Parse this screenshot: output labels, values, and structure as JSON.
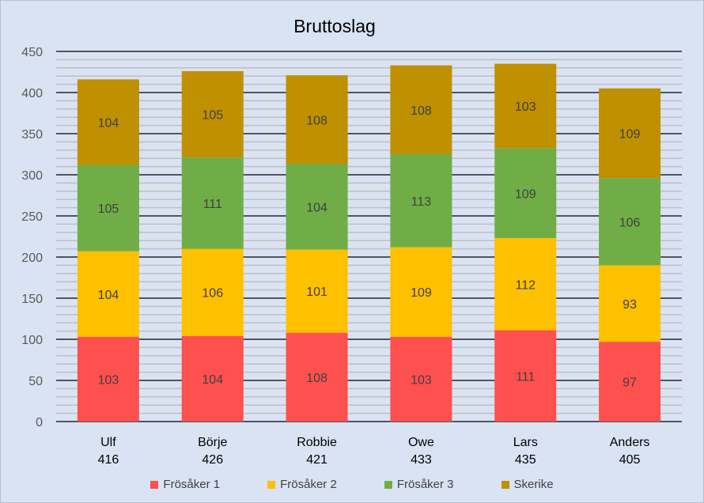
{
  "chart_data": {
    "type": "bar",
    "stacked": true,
    "title": "Bruttoslag",
    "categories": [
      "Ulf",
      "Börje",
      "Robbie",
      "Owe",
      "Lars",
      "Anders"
    ],
    "totals": [
      "416",
      "426",
      "421",
      "433",
      "435",
      "405"
    ],
    "series": [
      {
        "name": "Frösåker 1",
        "color": "#ff5050",
        "values": [
          103,
          104,
          108,
          103,
          111,
          97
        ]
      },
      {
        "name": "Frösåker 2",
        "color": "#ffc000",
        "values": [
          104,
          106,
          101,
          109,
          112,
          93
        ]
      },
      {
        "name": "Frösåker 3",
        "color": "#70ad47",
        "values": [
          105,
          111,
          104,
          113,
          109,
          106
        ]
      },
      {
        "name": "Skerike",
        "color": "#bf9000",
        "values": [
          104,
          105,
          108,
          108,
          103,
          109
        ]
      }
    ],
    "ylim": [
      0,
      450
    ],
    "major_tick": 50,
    "minor_tick": 10,
    "legend_position": "bottom",
    "grid": true
  }
}
